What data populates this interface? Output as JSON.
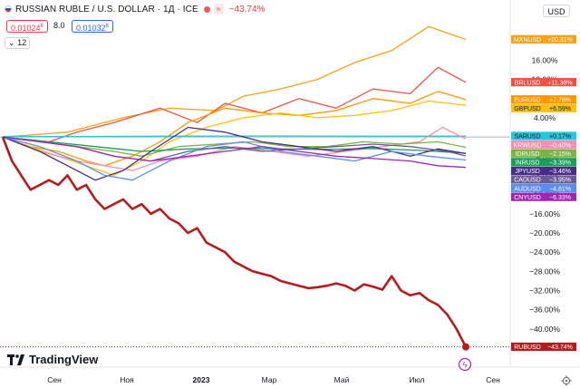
{
  "header": {
    "title": "RUSSIAN RUBLE / U.S. DOLLAR · 1Д · ICE",
    "chart_badge": "≈",
    "change": "−43.74%",
    "price_boxes": [
      "0.01024",
      "8.0",
      "0.01032"
    ],
    "price_box_subscript": "8",
    "volume_toggle": "12",
    "currency": "USD"
  },
  "brand": {
    "name": "TradingView"
  },
  "icons": [
    "flag-icon",
    "chevron-down-icon",
    "tradingview-logo-icon",
    "flash-icon",
    "settings-icon"
  ],
  "chart_data": {
    "type": "line",
    "x_ticks": [
      "Сен",
      "Ноя",
      "2023",
      "Мар",
      "Май",
      "Июл",
      "Сен"
    ],
    "y_axis_ticks": [
      "16.00%",
      "12.00%",
      "8.00%",
      "4.00%",
      "0.00%",
      "−4.00%",
      "−8.00%",
      "−12.00%",
      "−16.00%",
      "−20.00%",
      "−24.00%",
      "−28.00%",
      "−32.00%",
      "−36.00%",
      "−40.00%"
    ],
    "ylim": [
      -45.5,
      24
    ],
    "series": [
      {
        "name": "MXNUSD",
        "label": "+20.31%",
        "color": "#f6a21b",
        "x": [
          0,
          14,
          26,
          36,
          46,
          52,
          60,
          68,
          76,
          84,
          92,
          100
        ],
        "y": [
          0,
          1,
          4,
          6,
          5.5,
          8.5,
          10,
          12,
          15.5,
          18,
          23,
          20.31
        ]
      },
      {
        "name": "BRLUSD",
        "label": "+11.38%",
        "color": "#f35045",
        "x": [
          0,
          10,
          16,
          24,
          34,
          42,
          48,
          56,
          64,
          72,
          80,
          88,
          94,
          100
        ],
        "y": [
          0,
          -1,
          1,
          3,
          6,
          3,
          7,
          5,
          8,
          6,
          10,
          9,
          14.5,
          11.38
        ]
      },
      {
        "name": "EURUSD",
        "label": "+7.78%",
        "color": "#ff9800",
        "x": [
          0,
          6,
          12,
          18,
          22,
          28,
          34,
          40,
          48,
          56,
          64,
          72,
          80,
          88,
          94,
          100
        ],
        "y": [
          0,
          -2,
          -3,
          -5,
          -6,
          -4,
          -1,
          3,
          6,
          5,
          4.5,
          5.5,
          8,
          7,
          9.5,
          7.78
        ]
      },
      {
        "name": "GBPUSD",
        "label": "+6.59%",
        "color": "#ffc107",
        "x": [
          0,
          6,
          12,
          18,
          24,
          30,
          36,
          44,
          52,
          60,
          68,
          76,
          84,
          92,
          100
        ],
        "y": [
          0,
          -2,
          -4,
          -6,
          -8,
          -5,
          -1,
          2,
          4,
          5,
          4,
          4.5,
          5.5,
          7.5,
          6.59
        ]
      },
      {
        "name": "SARUSD",
        "label": "+0.17%",
        "color": "#27c6da",
        "x": [
          0,
          20,
          40,
          60,
          80,
          100
        ],
        "y": [
          0.1,
          0.1,
          0.17,
          0.2,
          0.15,
          0.17
        ]
      },
      {
        "name": "KRWUSD",
        "label": "−0.40%",
        "color": "#f48fb1",
        "x": [
          0,
          8,
          16,
          22,
          28,
          34,
          42,
          50,
          58,
          66,
          74,
          82,
          90,
          95,
          100
        ],
        "y": [
          0,
          -3,
          -5,
          -6,
          -7,
          -5,
          -4,
          -2,
          -3,
          -4,
          -3,
          -2,
          -1,
          2,
          -0.4
        ]
      },
      {
        "name": "IDRUSD",
        "label": "−2.15%",
        "color": "#7cb342",
        "x": [
          0,
          8,
          16,
          24,
          30,
          38,
          46,
          54,
          62,
          70,
          78,
          86,
          94,
          100
        ],
        "y": [
          0,
          -1,
          -2,
          -3,
          -4,
          -2,
          -1.5,
          -1,
          -2,
          -2,
          -1,
          -1.5,
          -1,
          -2.15
        ]
      },
      {
        "name": "INRUSD",
        "label": "−3.39%",
        "color": "#1b9e5a",
        "x": [
          0,
          10,
          20,
          30,
          40,
          50,
          60,
          70,
          80,
          90,
          100
        ],
        "y": [
          0,
          -1,
          -2,
          -3,
          -2.5,
          -2.3,
          -2.5,
          -2.6,
          -2.4,
          -2.8,
          -3.39
        ]
      },
      {
        "name": "JPYUSD",
        "label": "−3.46%",
        "color": "#4b2a8c",
        "x": [
          0,
          8,
          14,
          20,
          26,
          32,
          40,
          48,
          56,
          64,
          72,
          80,
          88,
          94,
          100
        ],
        "y": [
          0,
          -3,
          -6,
          -9,
          -7,
          -3,
          2,
          1,
          -1,
          -2,
          -3,
          -2,
          -4,
          -2.5,
          -3.46
        ]
      },
      {
        "name": "CADUSD",
        "label": "−3.95%",
        "color": "#6b5b95",
        "x": [
          0,
          8,
          16,
          24,
          32,
          40,
          48,
          56,
          64,
          72,
          80,
          88,
          96,
          100
        ],
        "y": [
          0,
          -1,
          -2,
          -4,
          -5,
          -3,
          -2,
          -3,
          -2.5,
          -2,
          -1.5,
          -2,
          -3,
          -3.95
        ]
      },
      {
        "name": "AUDUSD",
        "label": "−4.81%",
        "color": "#5b8def",
        "x": [
          0,
          8,
          16,
          22,
          28,
          36,
          44,
          52,
          60,
          68,
          76,
          84,
          92,
          100
        ],
        "y": [
          0,
          -2,
          -5,
          -8,
          -9,
          -5,
          -2,
          -1,
          -3,
          -4,
          -5,
          -3,
          -4,
          -4.81
        ]
      },
      {
        "name": "CNYUSD",
        "label": "−6.33%",
        "color": "#9c27b0",
        "x": [
          0,
          8,
          16,
          24,
          32,
          40,
          48,
          56,
          64,
          72,
          80,
          88,
          94,
          100
        ],
        "y": [
          0,
          -1,
          -2,
          -4,
          -5,
          -4,
          -3,
          -2,
          -3,
          -4,
          -4.5,
          -5,
          -6,
          -6.33
        ]
      },
      {
        "name": "RUBUSD",
        "label": "−43.74%",
        "color": "#b71c1c",
        "x": [
          0,
          2,
          4,
          6,
          8,
          10,
          12,
          14,
          16,
          18,
          20,
          22,
          24,
          26,
          28,
          30,
          32,
          34,
          36,
          38,
          40,
          42,
          44,
          46,
          48,
          50,
          52,
          54,
          56,
          58,
          60,
          62,
          64,
          66,
          68,
          70,
          72,
          74,
          76,
          78,
          80,
          82,
          84,
          86,
          88,
          90,
          92,
          94,
          96,
          98,
          100
        ],
        "y": [
          0,
          -5,
          -8,
          -11,
          -10,
          -9,
          -10,
          -8,
          -11,
          -10,
          -13,
          -15,
          -14,
          -13,
          -15,
          -14,
          -16,
          -15,
          -17,
          -18,
          -20,
          -19,
          -22,
          -23,
          -24,
          -26,
          -27,
          -28,
          -28.5,
          -29,
          -30,
          -30.5,
          -31,
          -31.5,
          -31.3,
          -31,
          -30.5,
          -31,
          -32,
          -30.7,
          -31.2,
          -31.8,
          -29,
          -32,
          -33,
          -32.5,
          -34,
          -35,
          -37,
          -40,
          -43.74
        ]
      }
    ]
  }
}
